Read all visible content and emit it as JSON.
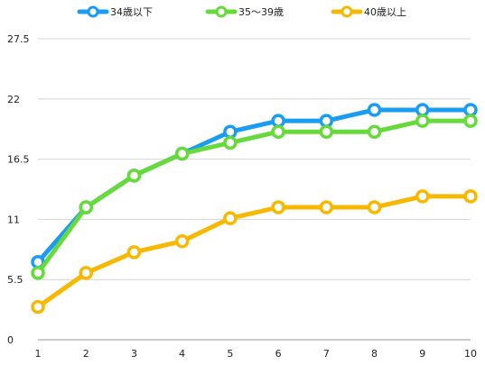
{
  "chart_data": {
    "type": "line",
    "title": "",
    "xlabel": "",
    "ylabel": "",
    "x": [
      1,
      2,
      3,
      4,
      5,
      6,
      7,
      8,
      9,
      10
    ],
    "x_tick_labels": [
      "1",
      "2",
      "3",
      "4",
      "5",
      "6",
      "7",
      "8",
      "9",
      "10"
    ],
    "ylim": [
      0,
      27.5
    ],
    "y_ticks": [
      0,
      5.5,
      11,
      16.5,
      22,
      27.5
    ],
    "y_tick_labels": [
      "0",
      "5.5",
      "11",
      "16.5",
      "22",
      "27.5"
    ],
    "grid": true,
    "legend_position": "top-center",
    "series": [
      {
        "name": "34歳以下",
        "color": "#1a9cf0",
        "values": [
          7.1,
          12.1,
          15.0,
          17.0,
          19.0,
          20.0,
          20.0,
          21.0,
          21.0,
          21.0
        ]
      },
      {
        "name": "35～39歳",
        "color": "#66d93b",
        "values": [
          6.1,
          12.1,
          15.0,
          17.0,
          18.0,
          19.0,
          19.0,
          19.0,
          20.0,
          20.0
        ]
      },
      {
        "name": "40歳以上",
        "color": "#f6b800",
        "values": [
          3.0,
          6.1,
          8.0,
          9.0,
          11.1,
          12.1,
          12.1,
          12.1,
          13.1,
          13.1
        ]
      }
    ]
  }
}
